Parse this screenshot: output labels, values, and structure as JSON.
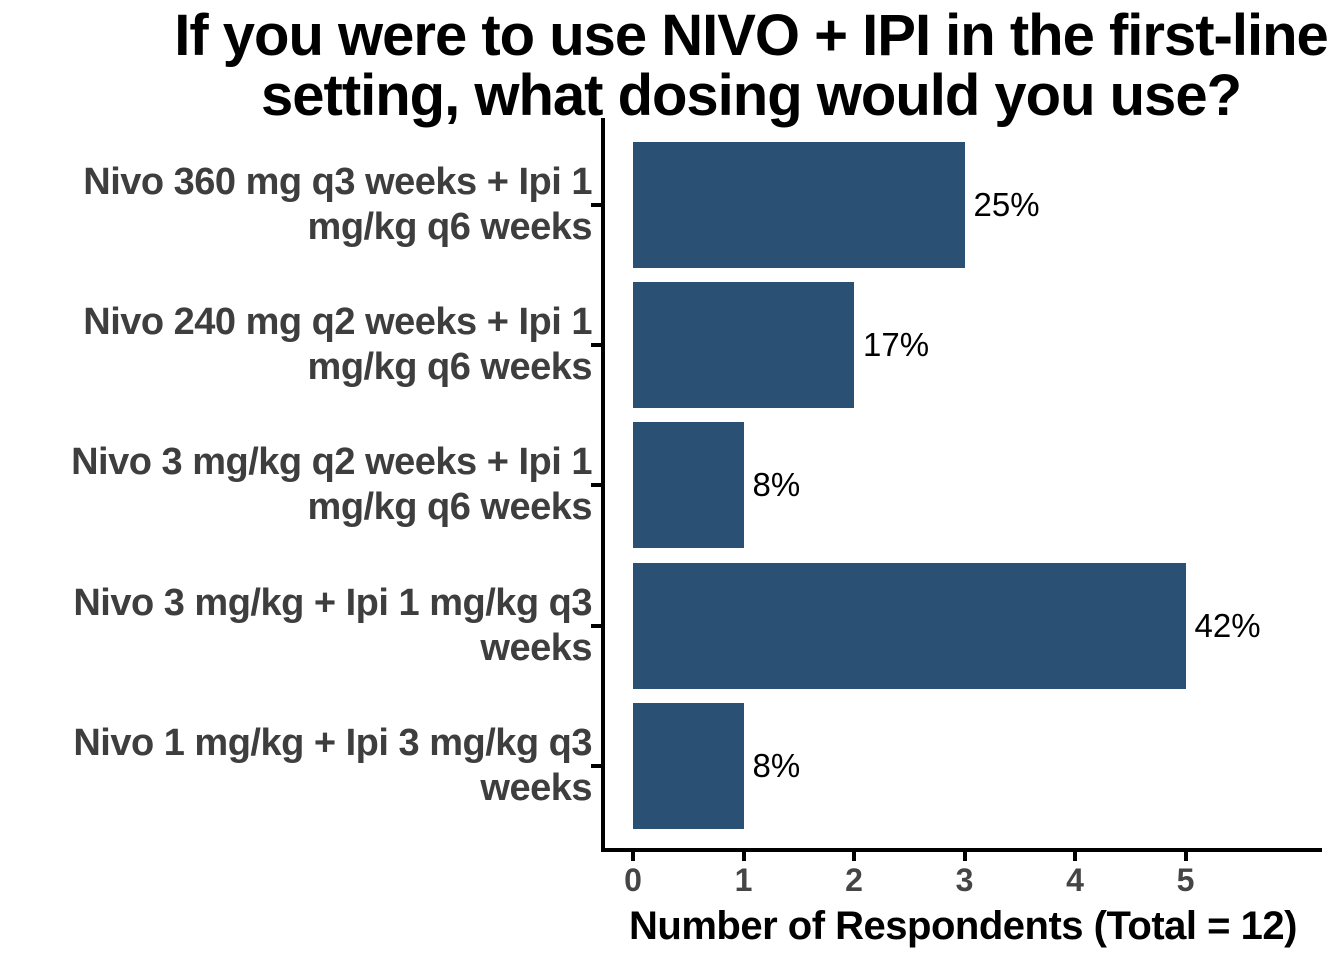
{
  "chart_data": {
    "type": "bar",
    "orientation": "horizontal",
    "title": "If you were to use NIVO + IPI in the first-line setting, what dosing would you use?",
    "title_lines": [
      "If you were to use NIVO + IPI in the first-line",
      "setting, what dosing would you use?"
    ],
    "categories": [
      [
        "Nivo 360 mg q3 weeks + Ipi 1",
        "mg/kg q6 weeks"
      ],
      [
        "Nivo 240 mg q2 weeks + Ipi 1",
        "mg/kg q6 weeks"
      ],
      [
        "Nivo 3 mg/kg q2 weeks + Ipi 1",
        "mg/kg q6 weeks"
      ],
      [
        "Nivo 3 mg/kg + Ipi 1 mg/kg q3",
        "weeks"
      ],
      [
        "Nivo 1 mg/kg + Ipi 3 mg/kg q3",
        "weeks"
      ]
    ],
    "values": [
      3,
      2,
      1,
      5,
      1
    ],
    "bar_labels": [
      "25%",
      "17%",
      "8%",
      "42%",
      "8%"
    ],
    "total_respondents": 12,
    "xlabel": "Number of Respondents (Total = 12)",
    "x_ticks": [
      0,
      1,
      2,
      3,
      4,
      5
    ],
    "xlim": [
      0,
      6.2
    ],
    "grid": false,
    "legend_position": "none",
    "colors": {
      "bar": "#2A5174",
      "category_label": "#3E3E3E",
      "tick_label": "#454545",
      "axis": "#000000",
      "title": "#000000",
      "value_label": "#000000",
      "background": "#FFFFFF"
    }
  }
}
